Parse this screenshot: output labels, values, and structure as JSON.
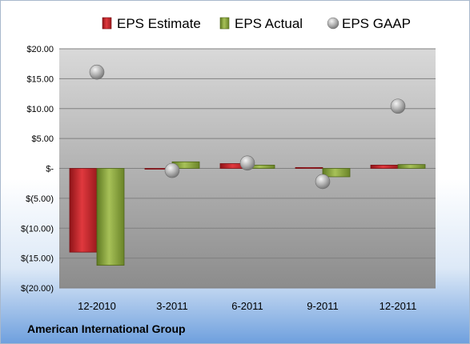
{
  "company": "American International Group",
  "chart_data": {
    "type": "bar",
    "categories": [
      "12-2010",
      "3-2011",
      "6-2011",
      "9-2011",
      "12-2011"
    ],
    "series": [
      {
        "name": "EPS Estimate",
        "type": "bar",
        "color": "#c0282d",
        "values": [
          -14.0,
          -0.1,
          0.8,
          0.15,
          0.55
        ]
      },
      {
        "name": "EPS Actual",
        "type": "bar",
        "color": "#8faa3c",
        "values": [
          -16.2,
          1.1,
          0.55,
          -1.4,
          0.65
        ]
      },
      {
        "name": "EPS GAAP",
        "type": "scatter",
        "color": "#aaaaaa",
        "values": [
          16.1,
          -0.35,
          0.9,
          -2.2,
          10.4
        ]
      }
    ],
    "ylim": [
      -20,
      20
    ],
    "yticks": [
      20,
      15,
      10,
      5,
      0,
      -5,
      -10,
      -15,
      -20
    ],
    "ytick_labels": [
      "$20.00",
      "$15.00",
      "$10.00",
      "$5.00",
      "$-",
      "$(5.00)",
      "$(10.00)",
      "$(15.00)",
      "$(20.00)"
    ],
    "grid": true,
    "legend_position": "top"
  }
}
